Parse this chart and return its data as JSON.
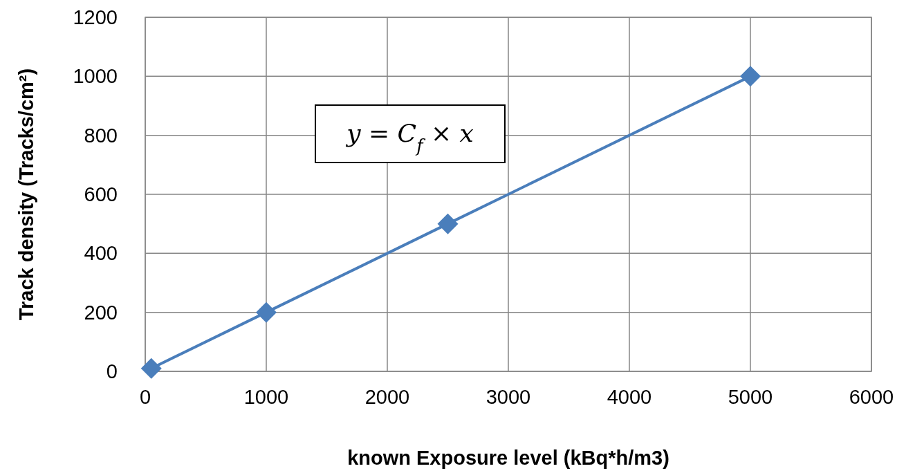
{
  "chart_data": {
    "type": "line",
    "xlabel": "known Exposure level (kBq*h/m3)",
    "ylabel": "Track density (Tracks/cm²)",
    "x": [
      50,
      1000,
      2500,
      5000
    ],
    "series": [
      {
        "color": "#4a7ebb",
        "values": [
          10,
          200,
          500,
          1000
        ]
      }
    ],
    "xlim": [
      0,
      6000
    ],
    "xticks": [
      0,
      1000,
      2000,
      3000,
      4000,
      5000,
      6000
    ],
    "ylim": [
      0,
      1200
    ],
    "yticks": [
      0,
      200,
      400,
      600,
      800,
      1000,
      1200
    ],
    "grid": true,
    "marker": "diamond",
    "line_style": "solid",
    "annotations": [
      "y = C$_{f}$ × x"
    ]
  }
}
